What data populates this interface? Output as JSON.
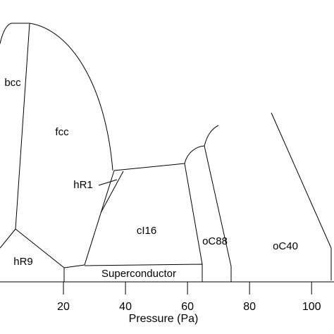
{
  "chart_data": {
    "type": "phase-diagram",
    "x_label": "Pressure (Pa)",
    "xlim": [
      0,
      107
    ],
    "xticks": [
      20,
      40,
      60,
      80,
      100
    ],
    "regions": [
      "bcc",
      "fcc",
      "hR1",
      "cI16",
      "oC88",
      "oC40",
      "hR9",
      "Superconductor"
    ]
  }
}
